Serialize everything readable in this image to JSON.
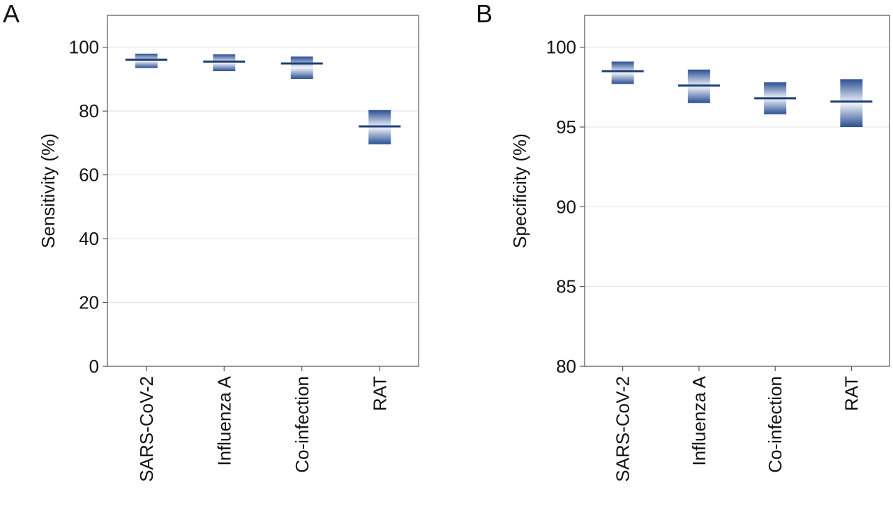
{
  "panels": [
    {
      "label": "A"
    },
    {
      "label": "B"
    }
  ],
  "colors": {
    "box_dark": "#2a4f93",
    "box_light": "#f3f6fb",
    "estimate_line": "#1e3f78",
    "gridline": "#e2e2e2",
    "frame": "#555555"
  },
  "chart_data": [
    {
      "type": "bar",
      "subtype": "floating-range-with-point-estimate",
      "panel": "A",
      "title": "",
      "xlabel": "",
      "ylabel": "Sensitivity (%)",
      "ylim": [
        0,
        110
      ],
      "yticks": [
        0,
        20,
        40,
        60,
        80,
        100
      ],
      "grid": true,
      "categories": [
        "SARS-CoV-2",
        "Influenza A",
        "Co-infection",
        "RAT"
      ],
      "estimate": [
        96.1,
        95.5,
        94.9,
        75.2
      ],
      "lower": [
        93.5,
        92.5,
        90.1,
        69.6
      ],
      "upper": [
        98.0,
        97.8,
        97.1,
        80.3
      ]
    },
    {
      "type": "bar",
      "subtype": "floating-range-with-point-estimate",
      "panel": "B",
      "title": "",
      "xlabel": "",
      "ylabel": "Specificity (%)",
      "ylim": [
        80,
        102
      ],
      "yticks": [
        80,
        85,
        90,
        95,
        100
      ],
      "grid": true,
      "categories": [
        "SARS-CoV-2",
        "Influenza A",
        "Co-infection",
        "RAT"
      ],
      "estimate": [
        98.5,
        97.6,
        96.8,
        96.6
      ],
      "lower": [
        97.7,
        96.5,
        95.8,
        95.0
      ],
      "upper": [
        99.1,
        98.6,
        97.8,
        98.0
      ]
    }
  ]
}
